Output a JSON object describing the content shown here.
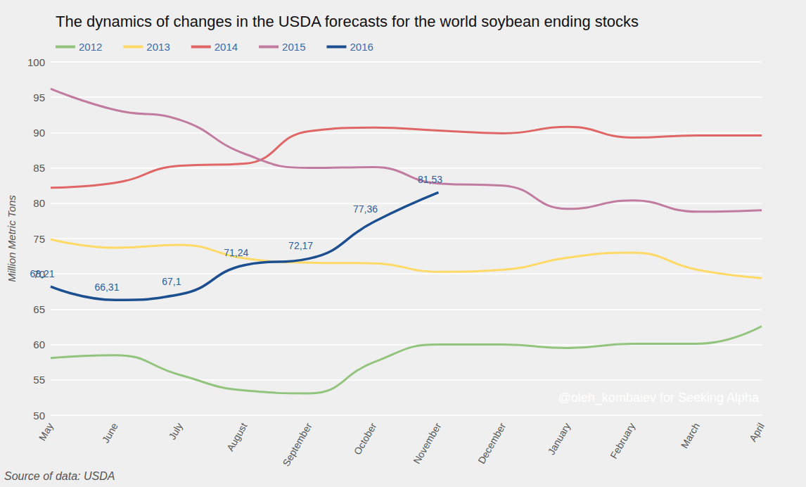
{
  "chart_data": {
    "type": "line",
    "title": "The dynamics of changes in the USDA forecasts for the world soybean ending stocks",
    "y_label": "Million Metric Tons",
    "source": "Source of data: USDA",
    "annotations": [
      "@oleh_kombaiev for Seeking Alpha"
    ],
    "categories": [
      "May",
      "June",
      "July",
      "August",
      "September",
      "October",
      "November",
      "December",
      "January",
      "February",
      "March",
      "April"
    ],
    "series": [
      {
        "name": "2012",
        "color": "#93c47d",
        "marker": "none",
        "values": [
          58.1,
          58.5,
          55.7,
          53.5,
          53.1,
          57.5,
          60.0,
          60.0,
          59.5,
          60.1,
          60.1,
          62.6
        ]
      },
      {
        "name": "2013",
        "color": "#ffd966",
        "marker": "none",
        "values": [
          74.9,
          73.7,
          74.1,
          72.2,
          71.6,
          71.5,
          70.3,
          70.6,
          72.3,
          73.0,
          70.6,
          69.4
        ]
      },
      {
        "name": "2014",
        "color": "#e06666",
        "marker": "none",
        "values": [
          82.2,
          82.9,
          85.3,
          85.6,
          90.2,
          90.7,
          90.3,
          89.9,
          90.8,
          89.3,
          89.6,
          89.6
        ]
      },
      {
        "name": "2015",
        "color": "#c27ba0",
        "marker": "none",
        "values": [
          96.2,
          93.2,
          91.8,
          87.0,
          85.0,
          85.1,
          82.8,
          82.5,
          79.2,
          80.4,
          78.8,
          79.0
        ]
      },
      {
        "name": "2016",
        "color": "#1c4f8f",
        "marker": "none",
        "data_labels": true,
        "values": [
          68.21,
          66.31,
          67.1,
          71.24,
          72.17,
          77.36,
          81.53,
          null,
          null,
          null,
          null,
          null
        ],
        "value_labels": [
          "68,21",
          "66,31",
          "67,1",
          "71,24",
          "72,17",
          "77,36",
          "81,53",
          null,
          null,
          null,
          null,
          null
        ]
      }
    ],
    "ylim": [
      50,
      100
    ],
    "yticks": [
      50,
      55,
      60,
      65,
      70,
      75,
      80,
      85,
      90,
      95,
      100
    ],
    "grid": true,
    "legend": "top-left"
  }
}
